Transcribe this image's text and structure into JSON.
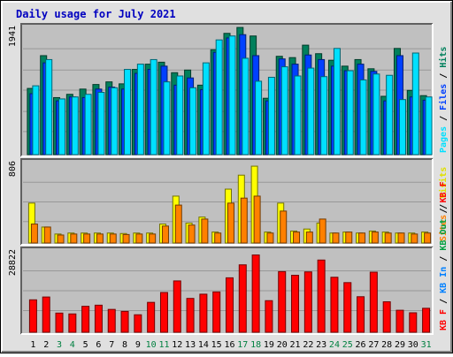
{
  "title": "Daily usage for July 2021",
  "colors": {
    "outer_bg": "#e0e0e0",
    "panel_bg": "#c0c0c0",
    "grid": "#989898",
    "title": "#0000c0",
    "hits": "#00805c",
    "files": "#0040ff",
    "pages": "#00e0ff",
    "visits": "#ffff00",
    "sites": "#ff8000",
    "kb_in": "#0080ff",
    "kb_out": "#00a040",
    "kb_f": "#ff0000",
    "day_weekday": "#000000",
    "day_weekend": "#008040"
  },
  "chart_data": [
    {
      "type": "bar",
      "name": "hits-files-pages",
      "max_label": "1941",
      "ylim": [
        0,
        1941
      ],
      "side_labels": [
        {
          "text": "Hits",
          "color": "#00805c"
        },
        {
          "text": "/",
          "color": "#000000"
        },
        {
          "text": "Files",
          "color": "#0040ff"
        },
        {
          "text": "/",
          "color": "#000000"
        },
        {
          "text": "Pages",
          "color": "#00e0ff"
        }
      ],
      "series": [
        {
          "name": "Hits",
          "color": "#00805c",
          "values": [
            1010,
            1510,
            870,
            920,
            1000,
            1070,
            1110,
            1080,
            1300,
            1380,
            1410,
            1250,
            1290,
            1060,
            1600,
            1850,
            1940,
            1810,
            860,
            1500,
            1480,
            1670,
            1540,
            1440,
            1350,
            1450,
            1310,
            890,
            1620,
            980,
            900
          ]
        },
        {
          "name": "Files",
          "color": "#0040ff",
          "values": [
            930,
            1400,
            820,
            880,
            870,
            1000,
            1030,
            1000,
            1240,
            1300,
            1350,
            1060,
            1170,
            990,
            1560,
            1780,
            1830,
            1510,
            820,
            1460,
            1380,
            1520,
            1450,
            1350,
            1280,
            1380,
            1270,
            820,
            1510,
            880,
            830
          ]
        },
        {
          "name": "Pages",
          "color": "#00e0ff",
          "values": [
            1050,
            1450,
            850,
            880,
            920,
            950,
            1020,
            1300,
            1380,
            1450,
            1110,
            1200,
            1020,
            1400,
            1750,
            1810,
            1470,
            1120,
            1180,
            1340,
            1200,
            1320,
            1190,
            1620,
            1280,
            1140,
            1230,
            1210,
            840,
            1550,
            880
          ]
        }
      ]
    },
    {
      "type": "bar",
      "name": "visits-sites",
      "max_label": "806",
      "ylim": [
        0,
        806
      ],
      "side_labels": [
        {
          "text": "Visits",
          "color": "#e0e000"
        },
        {
          "text": "/",
          "color": "#000000"
        },
        {
          "text": "Sites",
          "color": "#ff8000"
        }
      ],
      "series": [
        {
          "name": "Visits",
          "color": "#ffff00",
          "values": [
            400,
            160,
            90,
            100,
            100,
            100,
            100,
            95,
            100,
            100,
            190,
            470,
            200,
            260,
            110,
            540,
            680,
            770,
            110,
            400,
            120,
            140,
            200,
            100,
            110,
            100,
            120,
            110,
            100,
            100,
            110
          ]
        },
        {
          "name": "Sites",
          "color": "#ff8000",
          "values": [
            190,
            160,
            80,
            90,
            90,
            90,
            90,
            85,
            90,
            90,
            170,
            380,
            180,
            240,
            100,
            400,
            450,
            470,
            100,
            320,
            110,
            110,
            240,
            100,
            110,
            100,
            110,
            100,
            100,
            90,
            100
          ]
        }
      ]
    },
    {
      "type": "bar",
      "name": "kbytes",
      "max_label": "28822",
      "ylim": [
        0,
        28822
      ],
      "side_labels": [
        {
          "text": "KB F",
          "color": "#ff0000"
        },
        {
          "text": "/",
          "color": "#000000"
        },
        {
          "text": "KB Out",
          "color": "#00a040"
        },
        {
          "text": "/",
          "color": "#000000"
        },
        {
          "text": "KB In",
          "color": "#0080ff"
        },
        {
          "text": "/",
          "color": "#000000"
        },
        {
          "text": "KB F",
          "color": "#ff0000"
        }
      ],
      "series": [
        {
          "name": "KB F",
          "color": "#ff0000",
          "values": [
            11500,
            12500,
            6800,
            6500,
            9200,
            9600,
            8100,
            7400,
            6200,
            10600,
            14100,
            18200,
            12000,
            13500,
            14300,
            19300,
            23900,
            27400,
            11200,
            21500,
            20200,
            21400,
            25600,
            19500,
            17600,
            12600,
            21300,
            10800,
            7800,
            6900,
            8500
          ]
        }
      ]
    }
  ],
  "days": [
    {
      "label": "1",
      "weekend": false
    },
    {
      "label": "2",
      "weekend": false
    },
    {
      "label": "3",
      "weekend": true
    },
    {
      "label": "4",
      "weekend": true
    },
    {
      "label": "5",
      "weekend": false
    },
    {
      "label": "6",
      "weekend": false
    },
    {
      "label": "7",
      "weekend": false
    },
    {
      "label": "8",
      "weekend": false
    },
    {
      "label": "9",
      "weekend": false
    },
    {
      "label": "10",
      "weekend": true
    },
    {
      "label": "11",
      "weekend": true
    },
    {
      "label": "12",
      "weekend": false
    },
    {
      "label": "13",
      "weekend": false
    },
    {
      "label": "14",
      "weekend": false
    },
    {
      "label": "15",
      "weekend": false
    },
    {
      "label": "16",
      "weekend": false
    },
    {
      "label": "17",
      "weekend": true
    },
    {
      "label": "18",
      "weekend": true
    },
    {
      "label": "19",
      "weekend": false
    },
    {
      "label": "20",
      "weekend": false
    },
    {
      "label": "21",
      "weekend": false
    },
    {
      "label": "22",
      "weekend": false
    },
    {
      "label": "23",
      "weekend": false
    },
    {
      "label": "24",
      "weekend": true
    },
    {
      "label": "25",
      "weekend": true
    },
    {
      "label": "26",
      "weekend": false
    },
    {
      "label": "27",
      "weekend": false
    },
    {
      "label": "28",
      "weekend": false
    },
    {
      "label": "29",
      "weekend": false
    },
    {
      "label": "30",
      "weekend": false
    },
    {
      "label": "31",
      "weekend": true
    }
  ]
}
